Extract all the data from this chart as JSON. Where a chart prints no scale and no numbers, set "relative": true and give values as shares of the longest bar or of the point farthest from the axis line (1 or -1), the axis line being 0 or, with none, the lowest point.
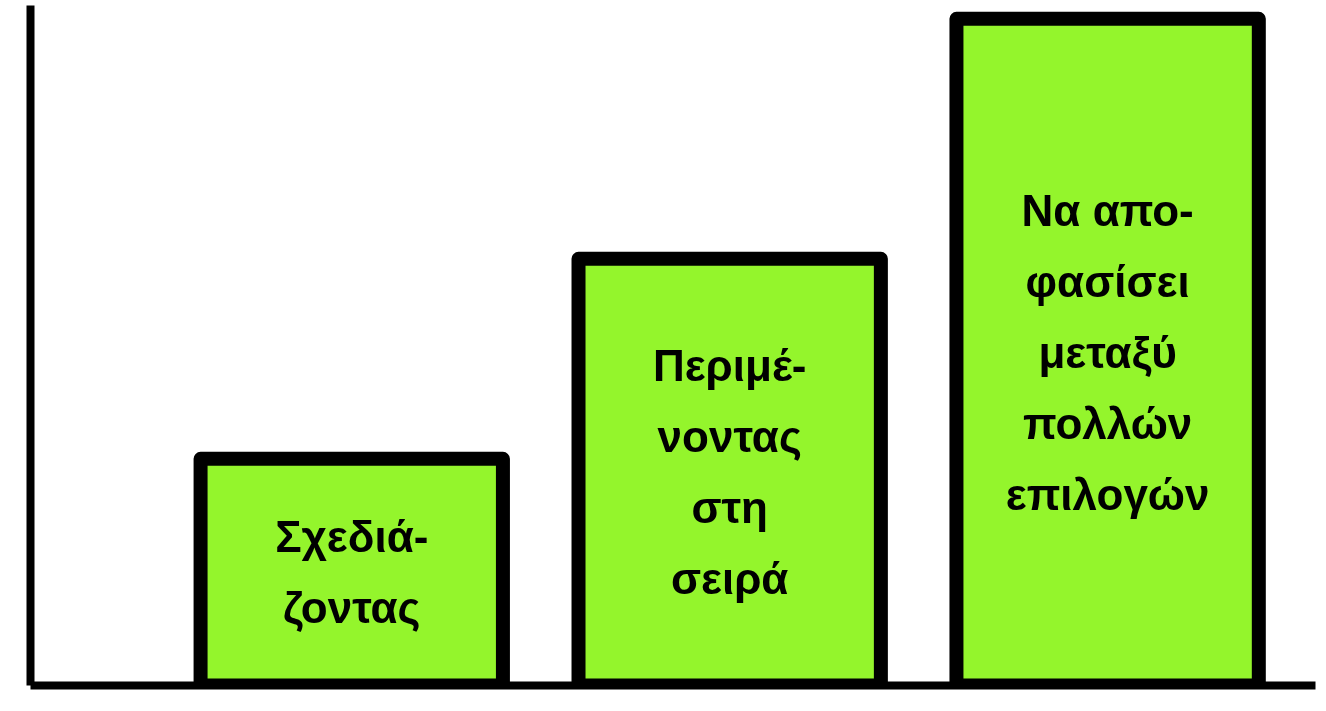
{
  "chart_data": {
    "type": "bar",
    "relative": true,
    "color": "#94f52c",
    "categories": [
      "Σχεδιά-\nζοντας",
      "Περιμέ-\nνοντας\nστη\nσειρά",
      "Να απο-\nφασίσει\nμεταξύ\nπολλών\nεπιλογών"
    ],
    "values": [
      0.34,
      0.64,
      1
    ]
  }
}
